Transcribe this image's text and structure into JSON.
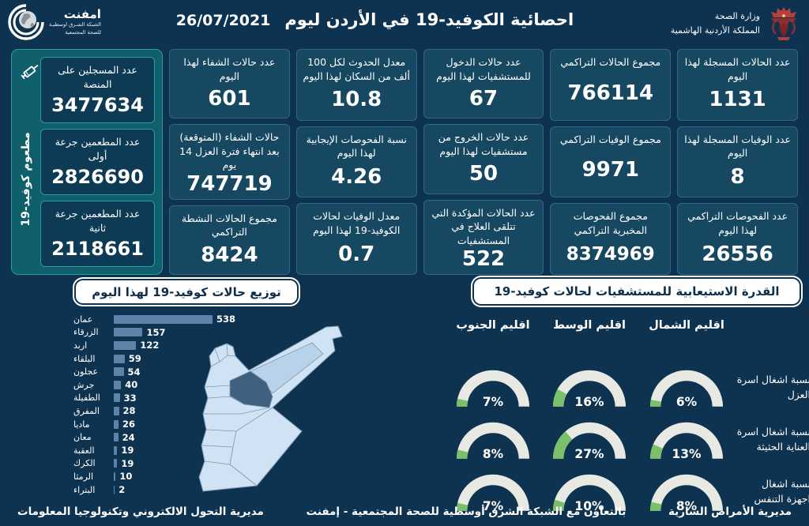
{
  "header": {
    "title": "احصائية الكوفيد-19 في الأردن ليوم",
    "date": "26/07/2021",
    "logo_emphnet": {
      "name": "امفنت",
      "sub1": "الشبكة الشـرق اوسطيـة",
      "sub2": "للصحة المجتمعية"
    },
    "logo_moh": {
      "line1": "وزارة الصحة",
      "line2": "المملكة الأردنية الهاشمية"
    }
  },
  "vaccine_panel": {
    "vertical_label": "مطعوم كوفيد-19",
    "cards": [
      {
        "label": "عدد المسجلين على المنصة",
        "value": "3477634"
      },
      {
        "label": "عدد المطعمين جرعة أولى",
        "value": "2826690"
      },
      {
        "label": "عدد المطعمين جرعة ثانية",
        "value": "2118661"
      }
    ]
  },
  "stat_columns": [
    [
      {
        "label": "عدد الحالات المسجلة لهذا اليوم",
        "value": "1131"
      },
      {
        "label": "عدد الوفيات المسجلة لهذا اليوم",
        "value": "8"
      },
      {
        "label": "عدد الفحوصات التراكمي لهذا اليوم",
        "value": "26556"
      }
    ],
    [
      {
        "label": "مجموع الحالات التراكمي",
        "value": "766114"
      },
      {
        "label": "مجموع الوفيات التراكمي",
        "value": "9971"
      },
      {
        "label": "مجموع الفحوصات المخبرية التراكمي",
        "value": "8374969"
      }
    ],
    [
      {
        "label": "عدد حالات الدخول للمستشفيات لهذا اليوم",
        "value": "67"
      },
      {
        "label": "عدد حالات الخروج من مستشفيات لهذا اليوم",
        "value": "50"
      },
      {
        "label": "عدد الحالات المؤكدة التي تتلقى العلاج في المستشفيات",
        "value": "522"
      }
    ],
    [
      {
        "label": "معدل الحدوث لكل 100 ألف من السكان لهذا اليوم",
        "value": "10.8"
      },
      {
        "label": "نسبة الفحوصات الإيجابية لهذا اليوم",
        "value": "4.26"
      },
      {
        "label": "معدل الوفيات لحالات الكوفيد-19 لهذا اليوم",
        "value": "0.7"
      }
    ],
    [
      {
        "label": "عدد حالات الشفاء لهذا اليوم",
        "value": "601"
      },
      {
        "label": "حالات الشفاء (المتوقعة) بعد انتهاء فترة العزل 14 يوم",
        "value": "747719"
      },
      {
        "label": "مجموع الحالات النشطة التراكمي",
        "value": "8424"
      }
    ]
  ],
  "chart_data": [
    {
      "type": "bar",
      "orientation": "horizontal",
      "title": "توزيع حالات كوفيد-19 لهذا اليوم",
      "categories": [
        "عمان",
        "الزرقاء",
        "اربد",
        "البلقاء",
        "عجلون",
        "جرش",
        "الطفيلة",
        "المفرق",
        "ماديا",
        "معان",
        "العقبة",
        "الكرك",
        "الرمثا",
        "البتراء"
      ],
      "values": [
        538,
        157,
        122,
        59,
        54,
        40,
        33,
        28,
        26,
        24,
        19,
        19,
        10,
        2
      ],
      "xlim": [
        0,
        538
      ],
      "bar_color": "#5e83a9",
      "value_labels": true
    },
    {
      "type": "gauge",
      "title": "القدرة الاستيعابية للمستشفيات لحالات كوفيد-19",
      "columns": [
        "اقليم الشمال",
        "اقليم الوسط",
        "اقليم الجنوب"
      ],
      "rows": [
        {
          "label": "نسبة اشغال اسرة العزل",
          "values_pct": [
            6,
            16,
            7
          ]
        },
        {
          "label": "نسبة اشغال اسرة العناية الحثيثة",
          "values_pct": [
            13,
            27,
            8
          ]
        },
        {
          "label": "نسبة اشغال اجهزة التنفس",
          "values_pct": [
            8,
            10,
            7
          ]
        }
      ],
      "range": [
        0,
        100
      ],
      "track_color": "#e9e9e4",
      "fill_color": "#7abf69"
    }
  ],
  "footer": {
    "right": "مديرية الأمراض السارية",
    "center": "بالتعاون مع الشبكة الشرق أوسطية للصحة المجتمعية - إمفنت",
    "left": "مديرية التحول الالكتروني وتكنولوجيا المعلومات"
  },
  "colors": {
    "background": "#0e3350",
    "card": "#174862",
    "teal_panel": "#10606c",
    "bar": "#5e83a9",
    "gauge_green": "#7abf69",
    "map_light": "#cfe3f4",
    "map_dark": "#40607f"
  }
}
